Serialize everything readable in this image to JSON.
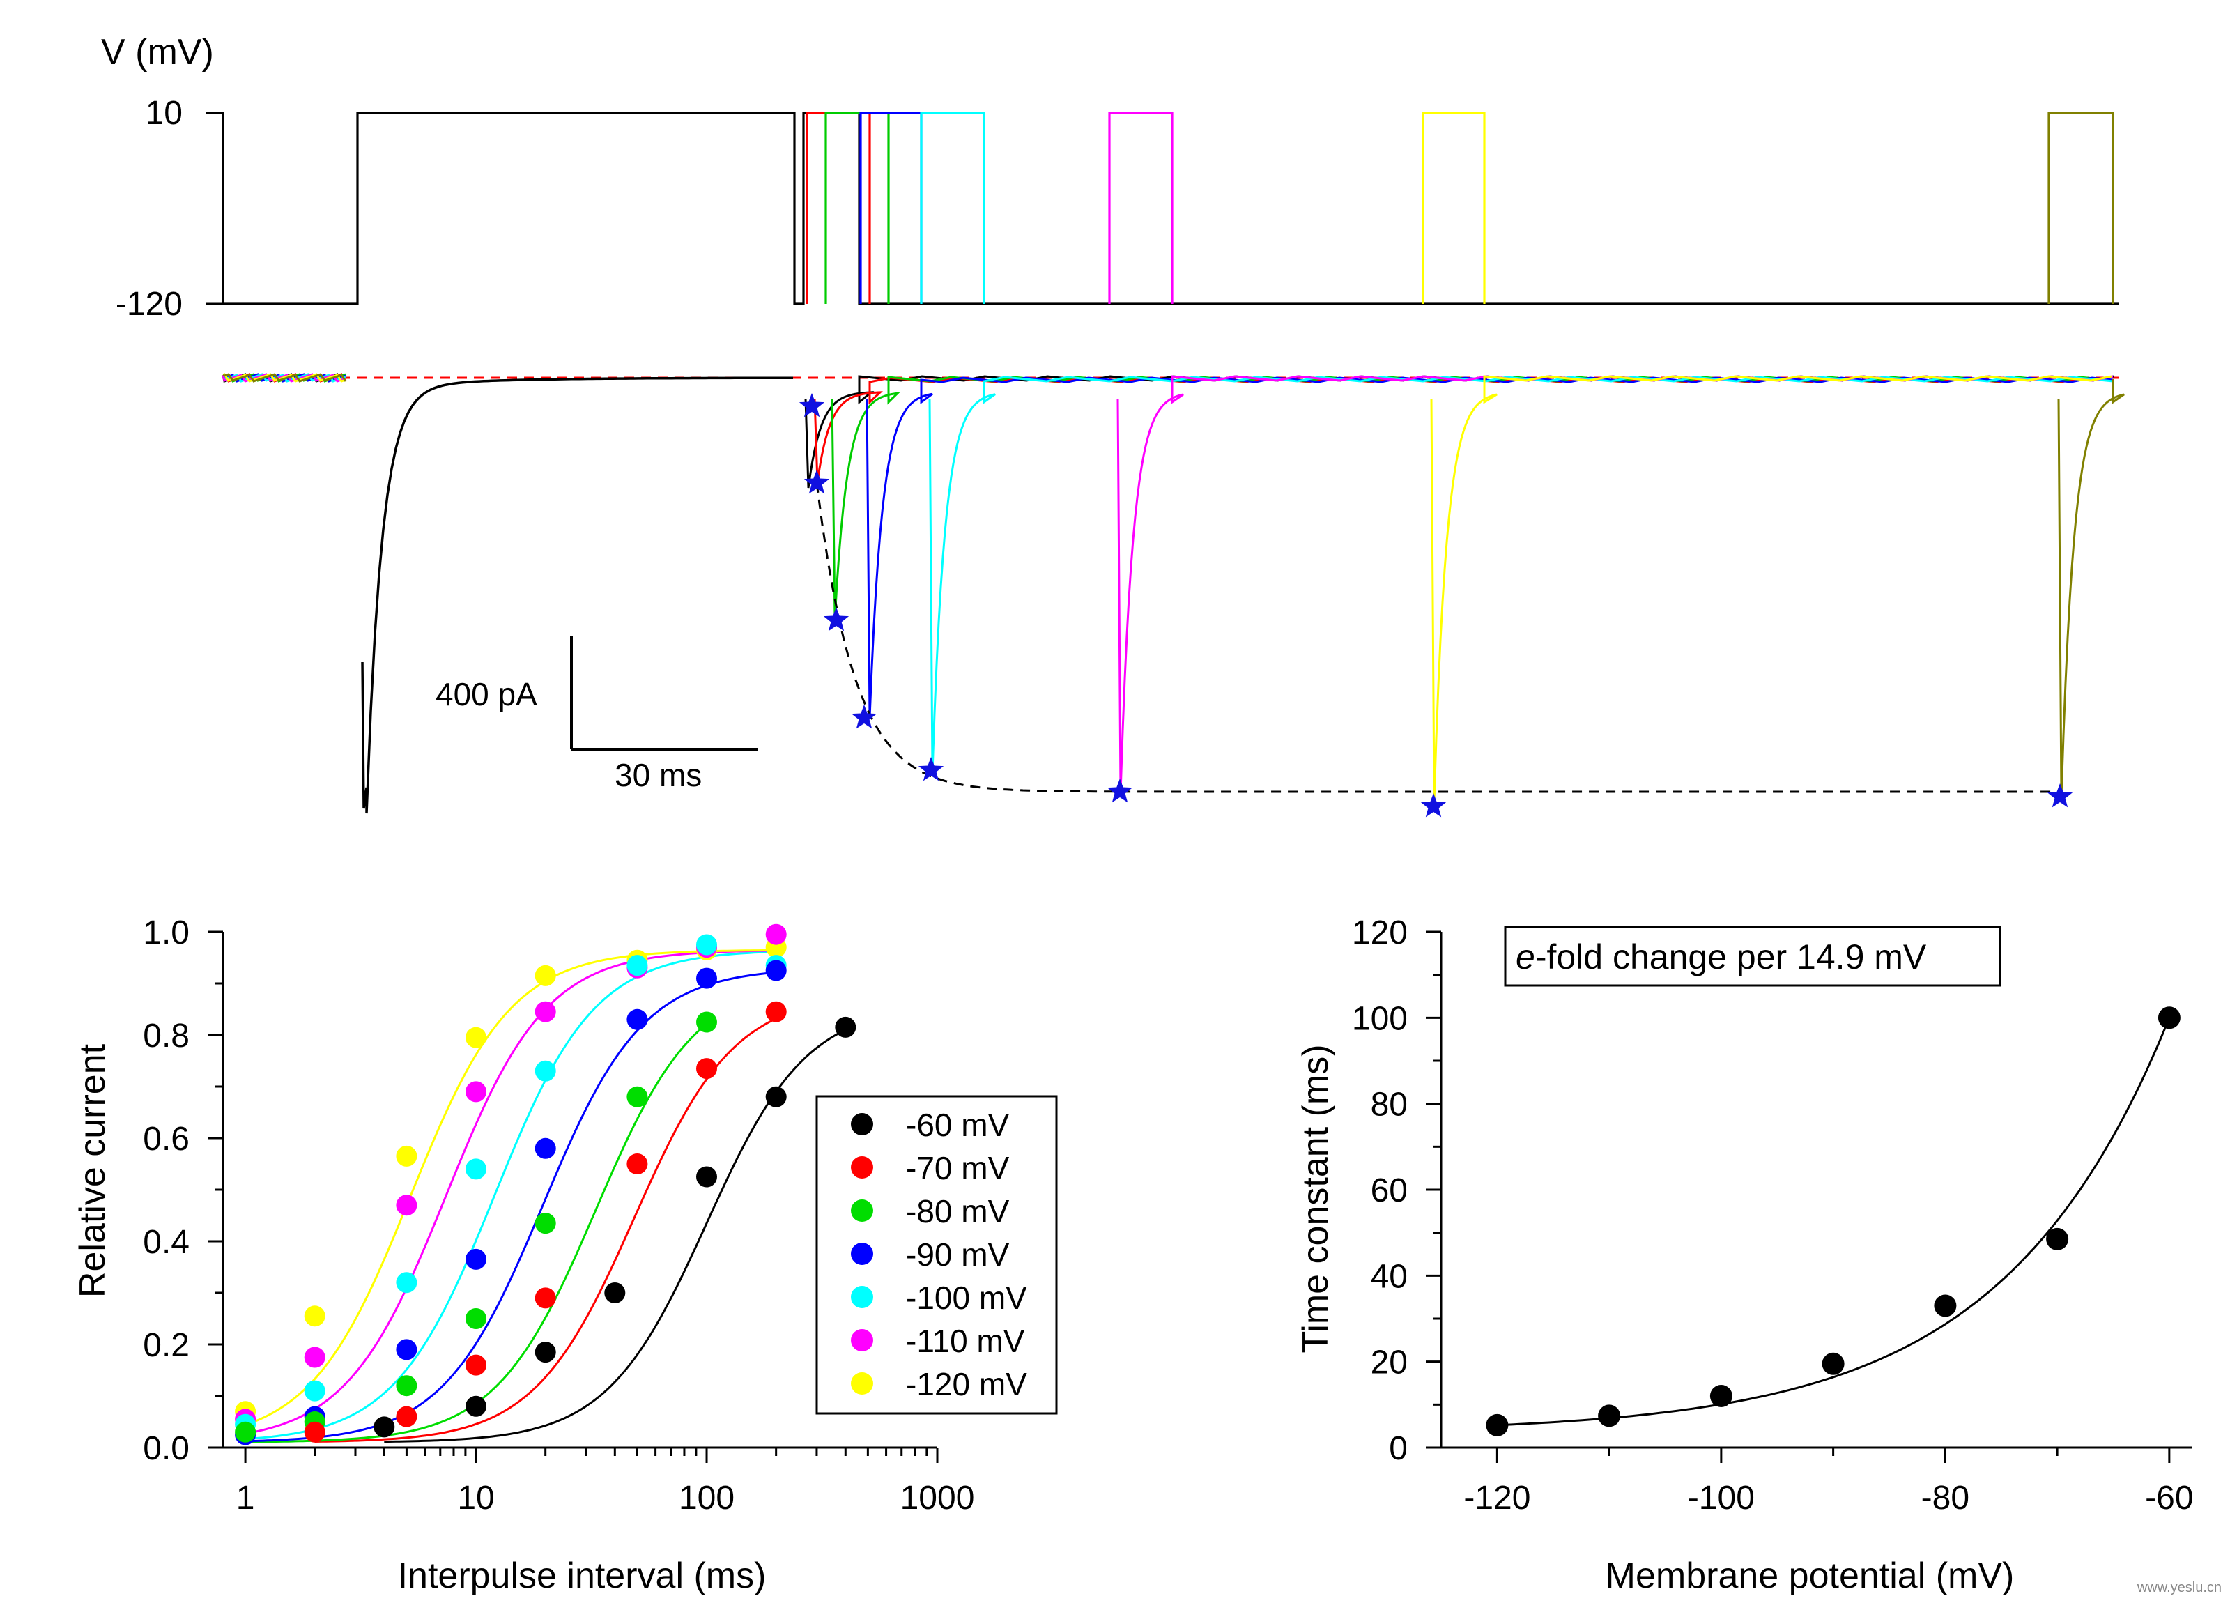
{
  "chart_data": [
    {
      "type": "line",
      "panel": "voltage protocol (top)",
      "ylabel": "V (mV)",
      "y_tick_labels": [
        "10",
        "-120"
      ],
      "holding_level_mV": -120,
      "step_level_mV": 10,
      "traces": [
        {
          "color": "#000000"
        },
        {
          "color": "#ff0000"
        },
        {
          "color": "#00cc00"
        },
        {
          "color": "#0000ff"
        },
        {
          "color": "#00ffff"
        },
        {
          "color": "#ff00ff"
        },
        {
          "color": "#ffff00"
        },
        {
          "color": "#808000"
        }
      ]
    },
    {
      "type": "line",
      "panel": "current recordings (middle)",
      "scalebar": {
        "current_label": "400 pA",
        "time_label": "30 ms"
      },
      "marker": "star",
      "marker_color": "#1010e0",
      "dashed_baseline_color": "#ff0000",
      "dashed_fit_color": "#000000",
      "trace_colors": [
        "#000000",
        "#ff0000",
        "#00cc00",
        "#0000ff",
        "#00ffff",
        "#ff00ff",
        "#ffff00",
        "#808000"
      ]
    },
    {
      "type": "scatter",
      "panel": "recovery curves (bottom left)",
      "xlabel": "Interpulse interval (ms)",
      "ylabel": "Relative current",
      "xscale": "log",
      "xlim": [
        0.8,
        1000
      ],
      "ylim": [
        0,
        1.0
      ],
      "x_ticks": [
        1,
        10,
        100,
        1000
      ],
      "x_tick_labels": [
        "1",
        "10",
        "100",
        "1000"
      ],
      "y_ticks": [
        0,
        0.2,
        0.4,
        0.6,
        0.8,
        1.0
      ],
      "y_tick_labels": [
        "0.0",
        "0.2",
        "0.4",
        "0.6",
        "0.8",
        "1.0"
      ],
      "legend_position": "right",
      "series": [
        {
          "name": "-60 mV",
          "color": "#000000",
          "x": [
            4,
            10,
            20,
            40,
            100,
            200,
            400
          ],
          "y": [
            0.04,
            0.08,
            0.185,
            0.3,
            0.525,
            0.68,
            0.815
          ],
          "fit": {
            "a": 0.85,
            "tau": 100
          }
        },
        {
          "name": "-70 mV",
          "color": "#ff0000",
          "x": [
            2,
            5,
            10,
            20,
            50,
            100,
            200
          ],
          "y": [
            0.03,
            0.06,
            0.16,
            0.29,
            0.55,
            0.735,
            0.845
          ],
          "fit": {
            "a": 0.87,
            "tau": 48.5
          }
        },
        {
          "name": "-80 mV",
          "color": "#00dd00",
          "x": [
            1,
            2,
            5,
            10,
            20,
            50,
            100
          ],
          "y": [
            0.03,
            0.05,
            0.12,
            0.25,
            0.435,
            0.68,
            0.825
          ],
          "fit": {
            "a": 0.9,
            "tau": 33
          }
        },
        {
          "name": "-90 mV",
          "color": "#0000ff",
          "x": [
            1,
            2,
            5,
            10,
            20,
            50,
            100,
            200
          ],
          "y": [
            0.025,
            0.06,
            0.19,
            0.365,
            0.58,
            0.83,
            0.91,
            0.925
          ],
          "fit": {
            "a": 0.92,
            "tau": 19.5
          }
        },
        {
          "name": "-100 mV",
          "color": "#00ffff",
          "x": [
            1,
            2,
            5,
            10,
            20,
            50,
            100,
            200
          ],
          "y": [
            0.045,
            0.11,
            0.32,
            0.54,
            0.73,
            0.935,
            0.975,
            0.935
          ],
          "fit": {
            "a": 0.955,
            "tau": 12
          }
        },
        {
          "name": "-110 mV",
          "color": "#ff00ff",
          "x": [
            1,
            2,
            5,
            10,
            20,
            50,
            100,
            200
          ],
          "y": [
            0.055,
            0.175,
            0.47,
            0.69,
            0.845,
            0.93,
            0.97,
            0.995
          ],
          "fit": {
            "a": 0.955,
            "tau": 7.4
          }
        },
        {
          "name": "-120 mV",
          "color": "#ffff00",
          "x": [
            1,
            2,
            5,
            10,
            20,
            50,
            100,
            200
          ],
          "y": [
            0.07,
            0.255,
            0.565,
            0.795,
            0.915,
            0.945,
            0.965,
            0.97
          ],
          "fit": {
            "a": 0.955,
            "tau": 5.2
          }
        }
      ]
    },
    {
      "type": "scatter",
      "panel": "time constants (bottom right)",
      "xlabel": "Membrane potential (mV)",
      "ylabel": "Time constant (ms)",
      "xlim": [
        -125,
        -58
      ],
      "ylim": [
        0,
        120
      ],
      "x_ticks": [
        -120,
        -100,
        -80,
        -60
      ],
      "x_tick_labels": [
        "-120",
        "-100",
        "-80",
        "-60"
      ],
      "y_ticks": [
        0,
        20,
        40,
        60,
        80,
        100,
        120
      ],
      "y_tick_labels": [
        "0",
        "20",
        "40",
        "60",
        "80",
        "100",
        "120"
      ],
      "annotation_italic": "e",
      "annotation_rest": "-fold change per 14.9 mV",
      "series": [
        {
          "color": "#000000",
          "x": [
            -120,
            -110,
            -100,
            -90,
            -80,
            -70,
            -60
          ],
          "y": [
            5.2,
            7.4,
            12,
            19.5,
            33,
            48.5,
            100
          ]
        }
      ],
      "fit": {
        "type": "exponential",
        "slope_factor_mV": 14.9,
        "a": 100,
        "c": 3.5
      }
    }
  ],
  "watermark": "www.yeslu.cn"
}
